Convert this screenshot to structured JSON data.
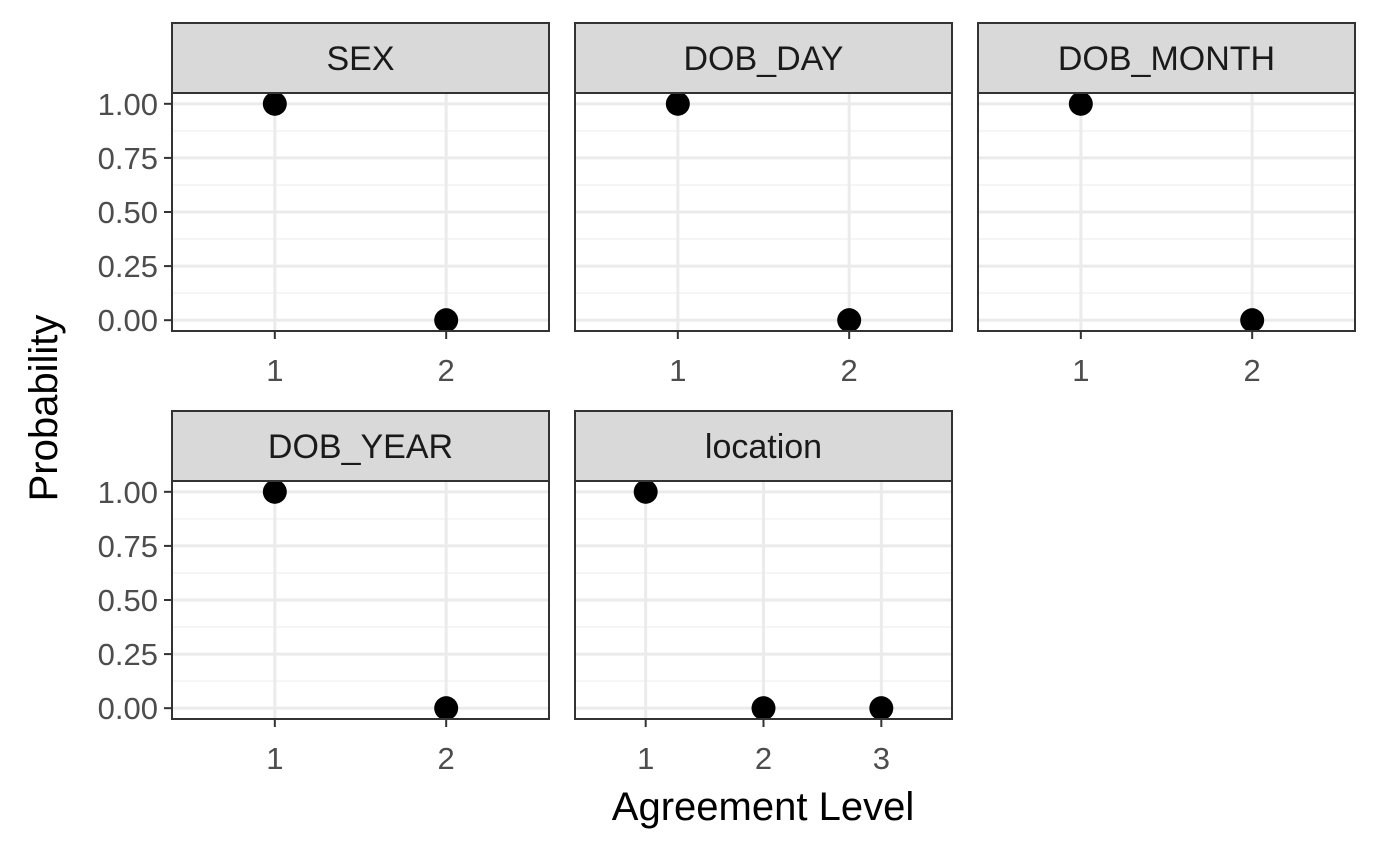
{
  "chart_data": {
    "type": "scatter",
    "layout": "faceted grid (2 rows × 3 columns)",
    "xlabel": "Agreement Level",
    "ylabel": "Probability",
    "ylim": [
      0,
      1
    ],
    "y_ticks": [
      "0.00",
      "0.25",
      "0.50",
      "0.75",
      "1.00"
    ],
    "y_tick_values": [
      0,
      0.25,
      0.5,
      0.75,
      1
    ],
    "grid": true,
    "legend": "none",
    "colors": {
      "point": "#000000",
      "strip_fill": "#d9d9d9",
      "panel_border": "#333333",
      "grid_major": "#ebebeb",
      "grid_minor": "#f2f2f2",
      "tick_text": "#4d4d4d"
    },
    "panels": [
      {
        "title": "SEX",
        "x": [
          1,
          2
        ],
        "x_ticks": [
          "1",
          "2"
        ],
        "values": [
          1.0,
          0.0
        ]
      },
      {
        "title": "DOB_DAY",
        "x": [
          1,
          2
        ],
        "x_ticks": [
          "1",
          "2"
        ],
        "values": [
          1.0,
          0.0
        ]
      },
      {
        "title": "DOB_MONTH",
        "x": [
          1,
          2
        ],
        "x_ticks": [
          "1",
          "2"
        ],
        "values": [
          1.0,
          0.0
        ]
      },
      {
        "title": "DOB_YEAR",
        "x": [
          1,
          2
        ],
        "x_ticks": [
          "1",
          "2"
        ],
        "values": [
          1.0,
          0.0
        ]
      },
      {
        "title": "location",
        "x": [
          1,
          2,
          3
        ],
        "x_ticks": [
          "1",
          "2",
          "3"
        ],
        "values": [
          1.0,
          0.0,
          0.0
        ]
      }
    ]
  }
}
